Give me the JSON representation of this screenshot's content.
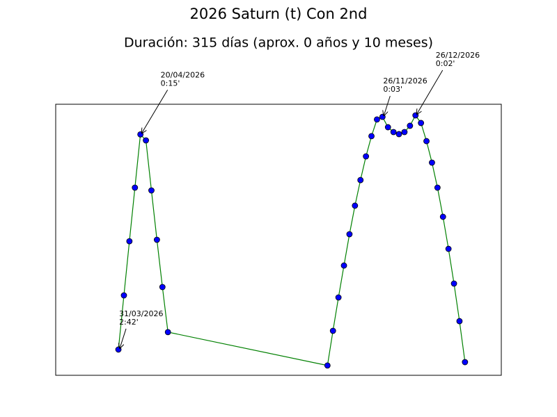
{
  "chart_data": {
    "type": "line",
    "title": "2026 Saturn (t) Con 2nd",
    "subtitle": "Duración: 315 días (aprox. 0 años y 10 meses)",
    "x": [
      "2026-03-31",
      "2026-04-05",
      "2026-04-10",
      "2026-04-15",
      "2026-04-20",
      "2026-04-25",
      "2026-04-30",
      "2026-05-05",
      "2026-05-10",
      "2026-05-15",
      "2026-10-07",
      "2026-10-12",
      "2026-10-17",
      "2026-10-22",
      "2026-10-27",
      "2026-11-01",
      "2026-11-06",
      "2026-11-11",
      "2026-11-16",
      "2026-11-21",
      "2026-11-26",
      "2026-12-01",
      "2026-12-06",
      "2026-12-11",
      "2026-12-16",
      "2026-12-21",
      "2026-12-26",
      "2026-12-31",
      "2027-01-05",
      "2027-01-10",
      "2027-01-15",
      "2027-01-20",
      "2027-01-25",
      "2027-01-30",
      "2027-02-04",
      "2027-02-09"
    ],
    "series": [
      {
        "color": "#008000",
        "marker_color": "#0000ff",
        "values": [
          162,
          125,
          88,
          51.4,
          15,
          19.1,
          53.3,
          87,
          119.3,
          150.1,
          172.9,
          149.2,
          126.4,
          104.6,
          83.2,
          63.7,
          46.2,
          30,
          16.2,
          4.8,
          3,
          10.1,
          13.4,
          14.8,
          13.4,
          9.1,
          2,
          7.2,
          19.6,
          34.3,
          51.4,
          71.3,
          93.2,
          116.9,
          142.6,
          170.6
        ]
      }
    ],
    "xlim": [
      "2026-02-02",
      "2027-03-14"
    ],
    "ylim": [
      179.6,
      -5.6
    ],
    "annotations": [
      {
        "x": "2026-03-31",
        "y": 162,
        "lines": [
          "31/03/2026",
          "2:42'"
        ]
      },
      {
        "x": "2026-04-20",
        "y": 15,
        "lines": [
          "20/04/2026",
          "0:15'"
        ]
      },
      {
        "x": "2026-11-26",
        "y": 3,
        "lines": [
          "26/11/2026",
          "0:03'"
        ]
      },
      {
        "x": "2026-12-26",
        "y": 2,
        "lines": [
          "26/12/2026",
          "0:02'"
        ]
      }
    ]
  }
}
